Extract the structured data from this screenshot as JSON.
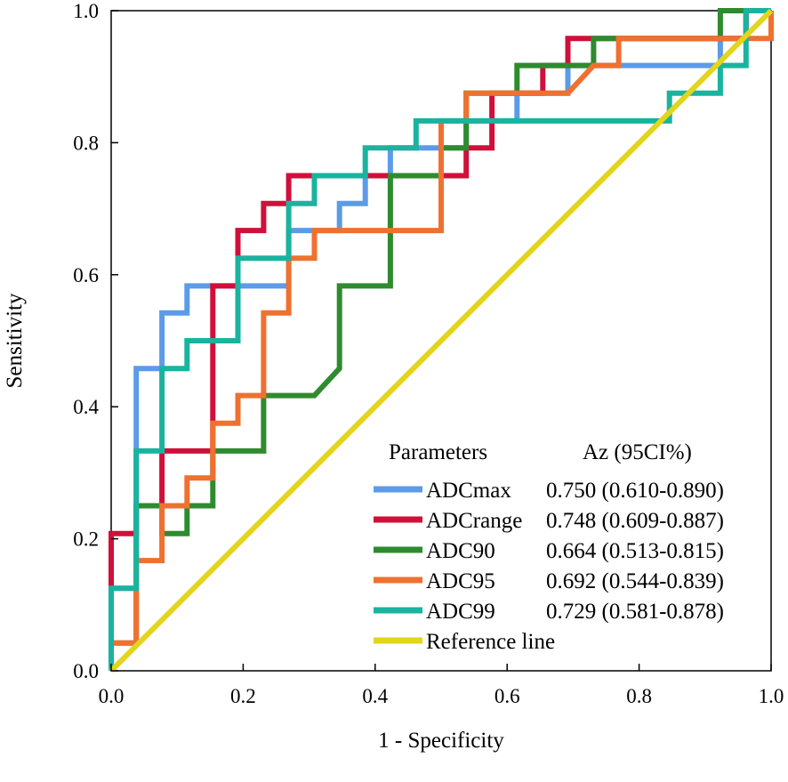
{
  "chart_data": {
    "type": "line",
    "title": "",
    "xlabel": "1 - Specificity",
    "ylabel": "Sensitivity",
    "xlim": [
      0,
      1
    ],
    "ylim": [
      0,
      1
    ],
    "xticks": [
      "0.0",
      "0.2",
      "0.4",
      "0.6",
      "0.8",
      "1.0"
    ],
    "yticks": [
      "0.0",
      "0.2",
      "0.4",
      "0.6",
      "0.8",
      "1.0"
    ],
    "legend": {
      "position": "bottom-right",
      "header_param": "Parameters",
      "header_az": "Az (95CI%)"
    },
    "series": [
      {
        "name": "ADCmax",
        "az": "0.750 (0.610-0.890)",
        "color": "#5b9be8",
        "points": [
          [
            0,
            0
          ],
          [
            0,
            0.125
          ],
          [
            0.038,
            0.125
          ],
          [
            0.038,
            0.458
          ],
          [
            0.077,
            0.458
          ],
          [
            0.077,
            0.542
          ],
          [
            0.115,
            0.542
          ],
          [
            0.115,
            0.583
          ],
          [
            0.269,
            0.583
          ],
          [
            0.269,
            0.667
          ],
          [
            0.346,
            0.667
          ],
          [
            0.346,
            0.708
          ],
          [
            0.385,
            0.708
          ],
          [
            0.385,
            0.75
          ],
          [
            0.423,
            0.75
          ],
          [
            0.423,
            0.792
          ],
          [
            0.538,
            0.792
          ],
          [
            0.538,
            0.833
          ],
          [
            0.615,
            0.833
          ],
          [
            0.615,
            0.875
          ],
          [
            0.692,
            0.875
          ],
          [
            0.692,
            0.917
          ],
          [
            0.923,
            0.917
          ],
          [
            0.923,
            0.958
          ],
          [
            0.962,
            0.958
          ],
          [
            0.962,
            1
          ],
          [
            1,
            1
          ]
        ]
      },
      {
        "name": "ADCrange",
        "az": "0.748 (0.609-0.887)",
        "color": "#d0103a",
        "points": [
          [
            0,
            0
          ],
          [
            0,
            0.208
          ],
          [
            0.038,
            0.208
          ],
          [
            0.038,
            0.25
          ],
          [
            0.077,
            0.25
          ],
          [
            0.077,
            0.333
          ],
          [
            0.154,
            0.333
          ],
          [
            0.154,
            0.583
          ],
          [
            0.192,
            0.583
          ],
          [
            0.192,
            0.667
          ],
          [
            0.231,
            0.667
          ],
          [
            0.231,
            0.708
          ],
          [
            0.269,
            0.708
          ],
          [
            0.269,
            0.75
          ],
          [
            0.538,
            0.75
          ],
          [
            0.538,
            0.792
          ],
          [
            0.577,
            0.792
          ],
          [
            0.577,
            0.875
          ],
          [
            0.654,
            0.875
          ],
          [
            0.654,
            0.917
          ],
          [
            0.692,
            0.917
          ],
          [
            0.692,
            0.958
          ],
          [
            0.962,
            0.958
          ],
          [
            0.962,
            1
          ],
          [
            1,
            1
          ]
        ]
      },
      {
        "name": "ADC90",
        "az": "0.664 (0.513-0.815)",
        "color": "#2e8b2e",
        "points": [
          [
            0,
            0
          ],
          [
            0,
            0.042
          ],
          [
            0.038,
            0.042
          ],
          [
            0.038,
            0.25
          ],
          [
            0.077,
            0.25
          ],
          [
            0.077,
            0.208
          ],
          [
            0.115,
            0.208
          ],
          [
            0.115,
            0.25
          ],
          [
            0.154,
            0.25
          ],
          [
            0.154,
            0.333
          ],
          [
            0.231,
            0.333
          ],
          [
            0.231,
            0.417
          ],
          [
            0.308,
            0.417
          ],
          [
            0.346,
            0.458
          ],
          [
            0.346,
            0.583
          ],
          [
            0.423,
            0.583
          ],
          [
            0.423,
            0.75
          ],
          [
            0.5,
            0.75
          ],
          [
            0.5,
            0.792
          ],
          [
            0.538,
            0.792
          ],
          [
            0.538,
            0.875
          ],
          [
            0.615,
            0.875
          ],
          [
            0.615,
            0.917
          ],
          [
            0.731,
            0.917
          ],
          [
            0.731,
            0.958
          ],
          [
            0.923,
            0.958
          ],
          [
            0.923,
            1
          ],
          [
            1,
            1
          ]
        ]
      },
      {
        "name": "ADC95",
        "az": "0.692 (0.544-0.839)",
        "color": "#f07030",
        "points": [
          [
            0,
            0
          ],
          [
            0,
            0.042
          ],
          [
            0.038,
            0.042
          ],
          [
            0.038,
            0.167
          ],
          [
            0.077,
            0.167
          ],
          [
            0.077,
            0.25
          ],
          [
            0.115,
            0.25
          ],
          [
            0.115,
            0.292
          ],
          [
            0.154,
            0.292
          ],
          [
            0.154,
            0.375
          ],
          [
            0.192,
            0.375
          ],
          [
            0.192,
            0.417
          ],
          [
            0.231,
            0.417
          ],
          [
            0.231,
            0.542
          ],
          [
            0.269,
            0.542
          ],
          [
            0.269,
            0.625
          ],
          [
            0.308,
            0.625
          ],
          [
            0.308,
            0.667
          ],
          [
            0.5,
            0.667
          ],
          [
            0.5,
            0.833
          ],
          [
            0.538,
            0.833
          ],
          [
            0.538,
            0.875
          ],
          [
            0.692,
            0.875
          ],
          [
            0.731,
            0.917
          ],
          [
            0.769,
            0.917
          ],
          [
            0.769,
            0.958
          ],
          [
            1,
            0.958
          ],
          [
            1,
            1
          ]
        ]
      },
      {
        "name": "ADC99",
        "az": "0.729 (0.581-0.878)",
        "color": "#1ab39f",
        "points": [
          [
            0,
            0
          ],
          [
            0,
            0.125
          ],
          [
            0.038,
            0.125
          ],
          [
            0.038,
            0.333
          ],
          [
            0.077,
            0.333
          ],
          [
            0.077,
            0.458
          ],
          [
            0.115,
            0.458
          ],
          [
            0.115,
            0.5
          ],
          [
            0.192,
            0.5
          ],
          [
            0.192,
            0.625
          ],
          [
            0.269,
            0.625
          ],
          [
            0.269,
            0.708
          ],
          [
            0.308,
            0.708
          ],
          [
            0.308,
            0.75
          ],
          [
            0.385,
            0.75
          ],
          [
            0.385,
            0.792
          ],
          [
            0.462,
            0.792
          ],
          [
            0.462,
            0.833
          ],
          [
            0.846,
            0.833
          ],
          [
            0.846,
            0.875
          ],
          [
            0.923,
            0.875
          ],
          [
            0.923,
            0.917
          ],
          [
            0.962,
            0.917
          ],
          [
            0.962,
            1
          ],
          [
            1,
            1
          ]
        ]
      },
      {
        "name": "Reference line",
        "az": "",
        "color": "#e3d41c",
        "points": [
          [
            0,
            0
          ],
          [
            1,
            1
          ]
        ]
      }
    ]
  }
}
